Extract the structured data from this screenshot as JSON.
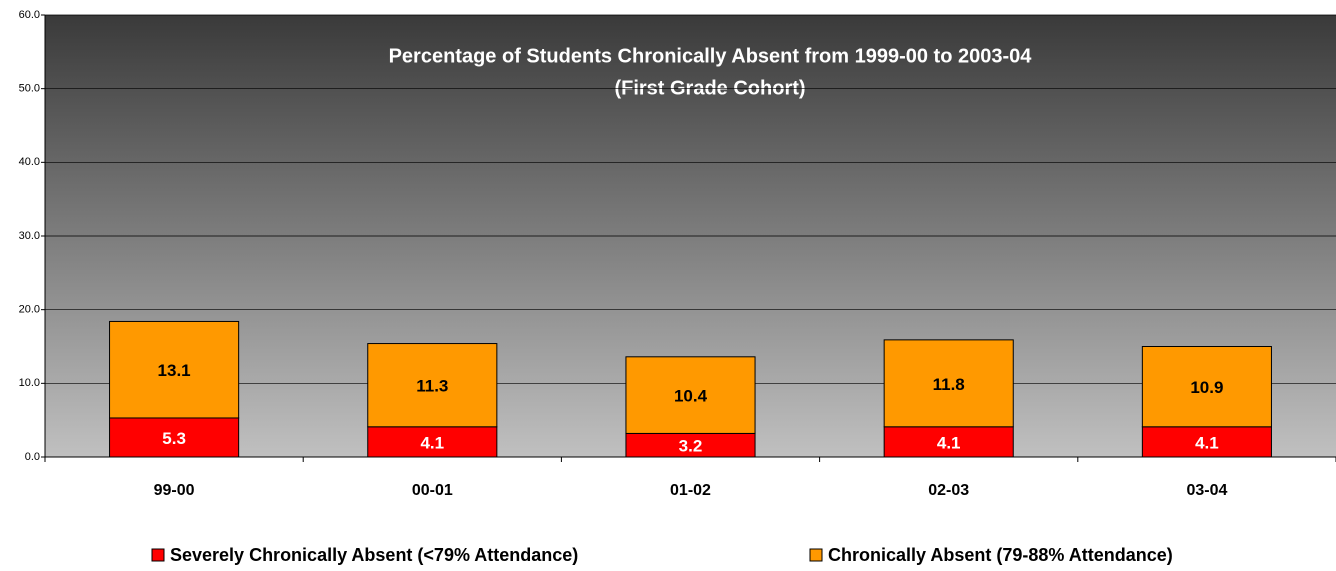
{
  "chart_data": {
    "type": "stacked_bar",
    "title": "Percentage of Students Chronically Absent from 1999-00 to 2003-04",
    "subtitle": "(First Grade Cohort)",
    "categories": [
      "99-00",
      "00-01",
      "01-02",
      "02-03",
      "03-04"
    ],
    "series": [
      {
        "name": "Severely Chronically Absent (<79% Attendance)",
        "color": "#ff0000",
        "label_color": "#ffffff",
        "values": [
          5.3,
          4.1,
          3.2,
          4.1,
          4.1
        ]
      },
      {
        "name": "Chronically Absent (79-88% Attendance)",
        "color": "#ff9900",
        "label_color": "#000000",
        "values": [
          13.1,
          11.3,
          10.4,
          11.8,
          10.9
        ]
      }
    ],
    "ylim": [
      0,
      60
    ],
    "yticks": [
      {
        "value": 0,
        "label": "0.0"
      },
      {
        "value": 10,
        "label": "10.0"
      },
      {
        "value": 20,
        "label": "20.0"
      },
      {
        "value": 30,
        "label": "30.0"
      },
      {
        "value": 40,
        "label": "40.0"
      },
      {
        "value": 50,
        "label": "50.0"
      },
      {
        "value": 60,
        "label": "60.0"
      }
    ],
    "grid": true,
    "legend": "bottom"
  }
}
